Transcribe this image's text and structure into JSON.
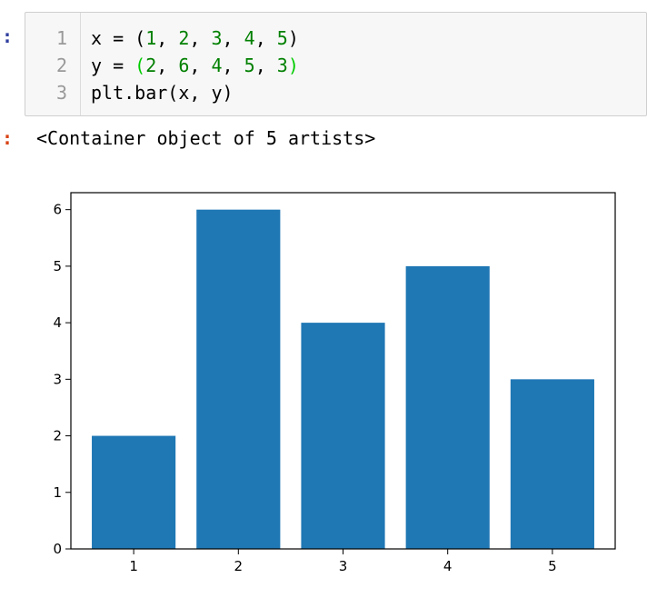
{
  "prompts": {
    "in": ":",
    "out": ":"
  },
  "code_cell": {
    "line_numbers": [
      "1",
      "2",
      "3"
    ],
    "line1": {
      "var": "x",
      "eq": " = ",
      "open": "(",
      "n1": "1",
      "n2": "2",
      "n3": "3",
      "n4": "4",
      "n5": "5",
      "close": ")",
      "sep": ", "
    },
    "line2": {
      "var": "y",
      "eq": " = ",
      "open": "(",
      "n1": "2",
      "n2": "6",
      "n3": "4",
      "n4": "5",
      "n5": "3",
      "close": ")",
      "sep": ", "
    },
    "line3": "plt.bar(x, y)"
  },
  "output": {
    "text": "<Container object of 5 artists>"
  },
  "colors": {
    "bar": "#1f77b4",
    "number": "#008000",
    "matched_paren": "#00cc00"
  },
  "chart_data": {
    "type": "bar",
    "categories": [
      "1",
      "2",
      "3",
      "4",
      "5"
    ],
    "values": [
      2,
      6,
      4,
      5,
      3
    ],
    "x_ticks": [
      "1",
      "2",
      "3",
      "4",
      "5"
    ],
    "y_ticks": [
      "0",
      "1",
      "2",
      "3",
      "4",
      "5",
      "6"
    ],
    "ylim": [
      0,
      6.3
    ],
    "xlim": [
      0.4,
      5.6
    ],
    "title": "",
    "xlabel": "",
    "ylabel": "",
    "grid": false
  }
}
